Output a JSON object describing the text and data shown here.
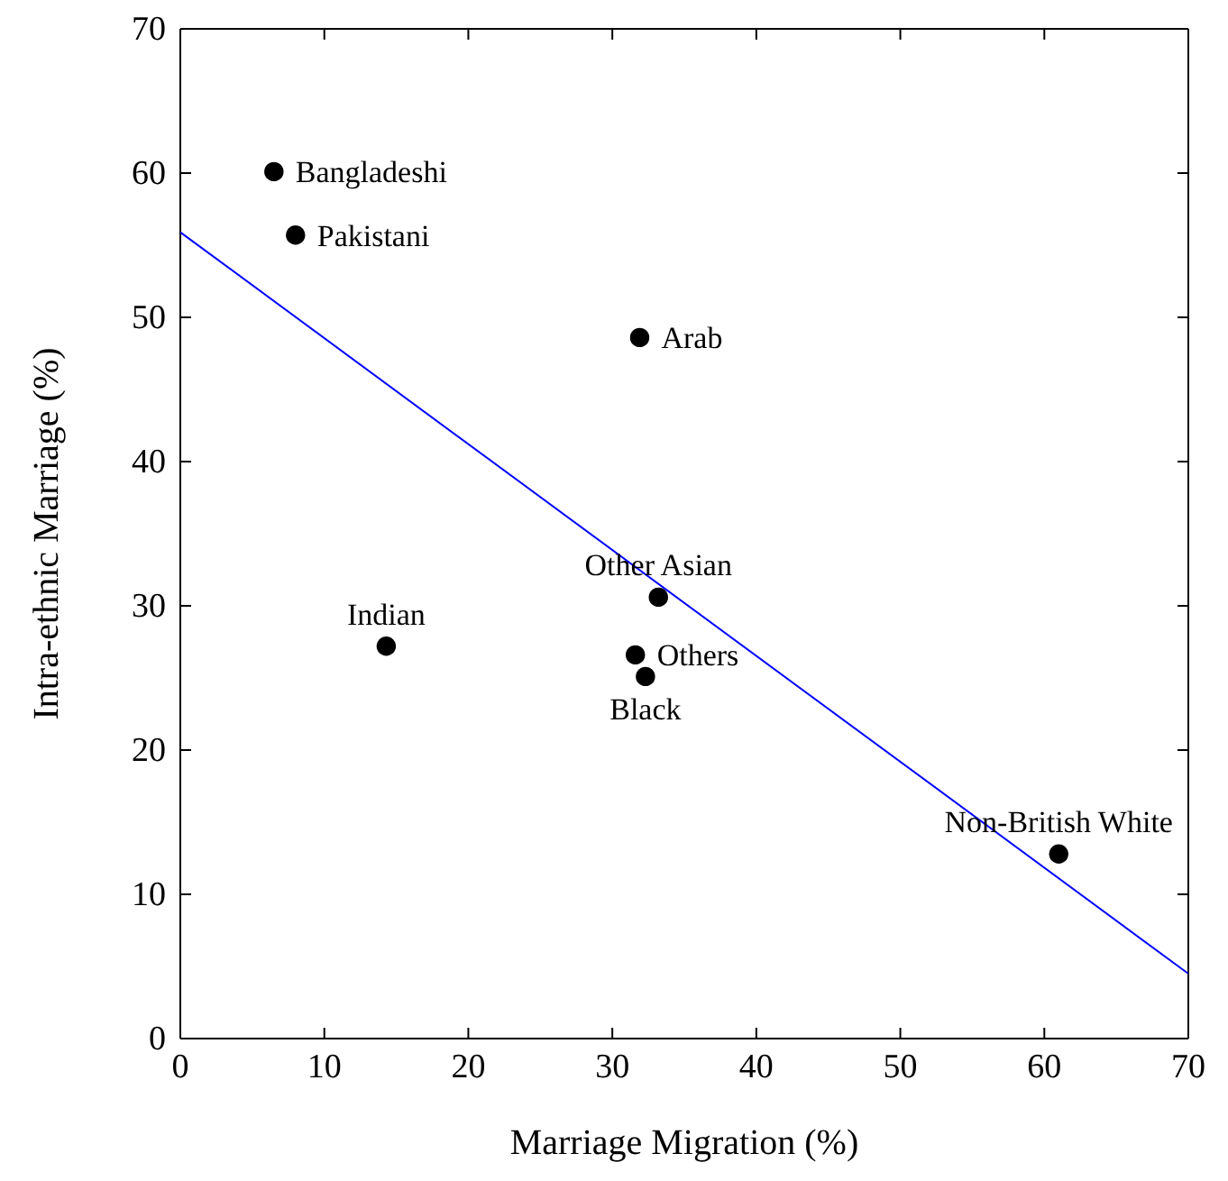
{
  "chart_data": {
    "type": "scatter",
    "xlabel": "Marriage Migration (%)",
    "ylabel": "Intra-ethnic Marriage (%)",
    "xlim": [
      0,
      70
    ],
    "ylim": [
      0,
      70
    ],
    "xticks": [
      0,
      10,
      20,
      30,
      40,
      50,
      60,
      70
    ],
    "yticks": [
      0,
      10,
      20,
      30,
      40,
      50,
      60,
      70
    ],
    "grid": false,
    "series": [
      {
        "marker": "circle",
        "color": "#000000",
        "x": [
          6.5,
          8.0,
          31.9,
          33.2,
          14.3,
          31.6,
          32.3,
          61.0
        ],
        "values": [
          60.1,
          55.7,
          48.6,
          30.6,
          27.2,
          26.6,
          25.1,
          12.8
        ]
      },
      {
        "type": "line",
        "color": "#0000ff",
        "x": [
          0,
          70
        ],
        "values": [
          55.9,
          4.5
        ]
      }
    ],
    "annotations": [
      {
        "text": "Bangladeshi",
        "x": 6.5,
        "y": 60.1
      },
      {
        "text": "Pakistani",
        "x": 8.0,
        "y": 55.7
      },
      {
        "text": "Arab",
        "x": 31.9,
        "y": 48.6
      },
      {
        "text": "Other Asian",
        "x": 33.2,
        "y": 30.6
      },
      {
        "text": "Indian",
        "x": 14.3,
        "y": 27.2
      },
      {
        "text": "Others",
        "x": 31.6,
        "y": 26.6
      },
      {
        "text": "Black",
        "x": 32.3,
        "y": 25.1
      },
      {
        "text": "Non-British White",
        "x": 61.0,
        "y": 12.8
      }
    ]
  }
}
